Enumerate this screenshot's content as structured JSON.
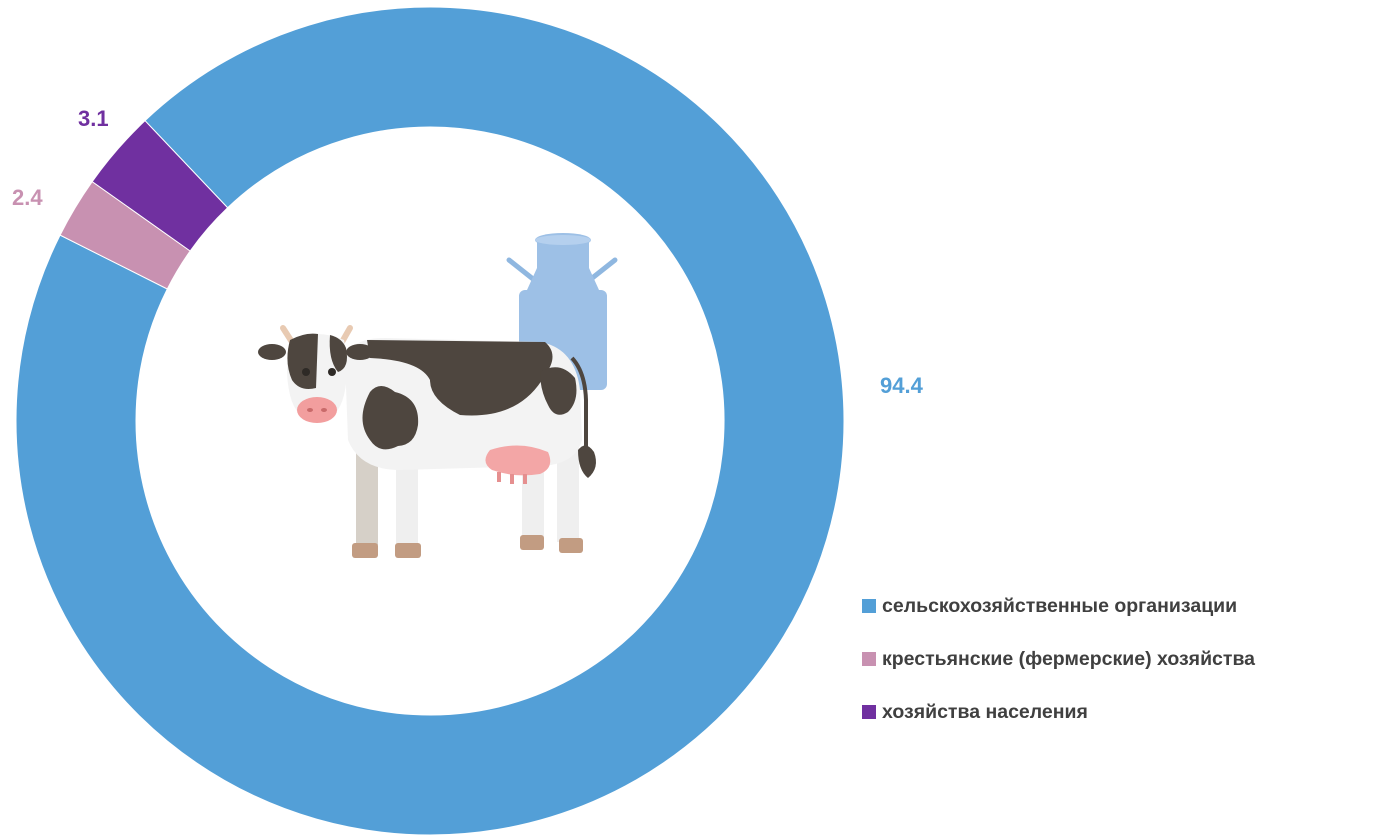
{
  "chart_data": {
    "type": "pie",
    "style": "donut",
    "title": "",
    "series": [
      {
        "name": "сельскохозяйственные организации",
        "value": 94.4,
        "label": "94.4",
        "color": "#539fd7"
      },
      {
        "name": "крестьянские (фермерские) хозяйства",
        "value": 2.4,
        "label": "2.4",
        "color": "#c891b1"
      },
      {
        "name": "хозяйства населения",
        "value": 3.1,
        "label": "3.1",
        "color": "#7030a0"
      }
    ],
    "legend_position": "bottom-right",
    "center_image": "cow-and-milk-can-illustration"
  }
}
